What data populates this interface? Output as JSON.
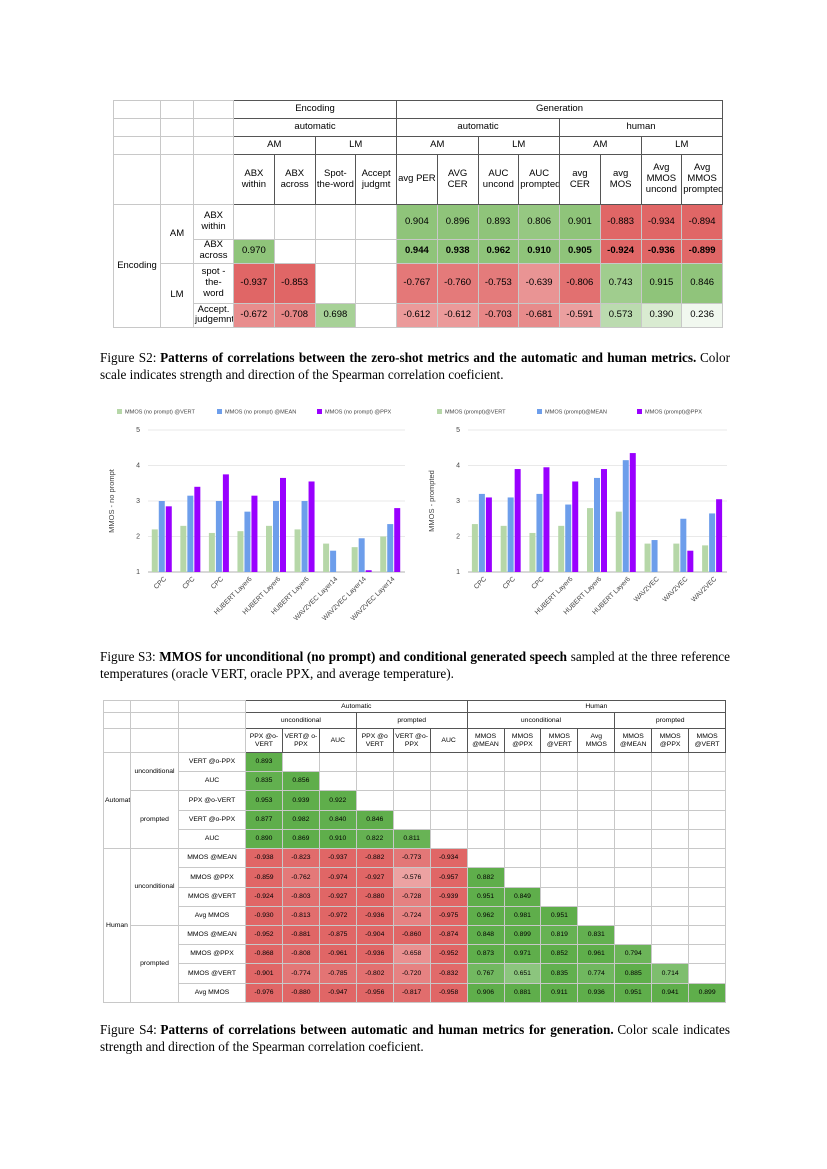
{
  "table_s2": {
    "color_scale": {
      "positive": "#8fc47a",
      "negative": "#e06666"
    },
    "columns": [
      {
        "label": "Encoding",
        "children": [
          {
            "label": "automatic",
            "children": [
              {
                "label": "AM",
                "children": [
                  "ABX within",
                  "ABX across"
                ]
              },
              {
                "label": "LM",
                "children": [
                  "Spot-the-word",
                  "Accept judgmt"
                ]
              }
            ]
          }
        ]
      },
      {
        "label": "Generation",
        "children": [
          {
            "label": "automatic",
            "children": [
              {
                "label": "AM",
                "children": [
                  "avg PER",
                  "AVG CER"
                ]
              },
              {
                "label": "LM",
                "children": [
                  "AUC uncond",
                  "AUC prompted"
                ]
              }
            ]
          },
          {
            "label": "human",
            "children": [
              {
                "label": "AM",
                "children": [
                  "avg CER",
                  "avg MOS"
                ]
              },
              {
                "label": "LM",
                "children": [
                  "Avg MMOS uncond",
                  "Avg MMOS prompted"
                ]
              }
            ]
          }
        ]
      }
    ],
    "rows": [
      {
        "label": "Encoding",
        "children": [
          {
            "label": "AM",
            "children": [
              {
                "label": "ABX within",
                "cells": [
                  null,
                  null,
                  null,
                  null,
                  "0.904",
                  "0.896",
                  "0.893",
                  "0.806",
                  "0.901",
                  "-0.883",
                  "-0.934",
                  "-0.894"
                ]
              },
              {
                "label": "ABX across",
                "cells": [
                  "0.970",
                  null,
                  null,
                  null,
                  {
                    "text": "0.944",
                    "bold": true
                  },
                  {
                    "text": "0.938",
                    "bold": true
                  },
                  {
                    "text": "0.962",
                    "bold": true
                  },
                  {
                    "text": "0.910",
                    "bold": true
                  },
                  {
                    "text": "0.905",
                    "bold": true
                  },
                  {
                    "text": "-0.924",
                    "bold": true
                  },
                  {
                    "text": "-0.936",
                    "bold": true
                  },
                  {
                    "text": "-0.899",
                    "bold": true
                  }
                ]
              }
            ]
          },
          {
            "label": "LM",
            "children": [
              {
                "label": "spot - the- word",
                "cells": [
                  "-0.937",
                  "-0.853",
                  null,
                  null,
                  "-0.767",
                  "-0.760",
                  "-0.753",
                  "-0.639",
                  "-0.806",
                  "0.743",
                  "0.915",
                  "0.846"
                ]
              },
              {
                "label": "Accept. judgemnt",
                "cells": [
                  "-0.672",
                  "-0.708",
                  "0.698",
                  null,
                  "-0.612",
                  "-0.612",
                  "-0.703",
                  "-0.681",
                  "-0.591",
                  "0.573",
                  "0.390",
                  "0.236"
                ]
              }
            ]
          }
        ]
      }
    ]
  },
  "caption_s2": {
    "label": "Figure S2:",
    "bold": "Patterns of correlations between the zero-shot metrics and the automatic and human metrics.",
    "text": "Color scale indicates strength and direction of the Spearman correlation coeficient."
  },
  "chart_data": [
    {
      "type": "bar",
      "y_label": "MMOS - no prompt",
      "legend": "top",
      "categories": [
        "CPC",
        "CPC",
        "CPC",
        "HUBERT Layer6",
        "HUBERT Layer6",
        "HUBERT Layer6",
        "WAV2VEC Layer14",
        "WAV2VEC Layer14",
        "WAV2VEC Layer14"
      ],
      "ylim": [
        1,
        5
      ],
      "yticks": [
        1,
        2,
        3,
        4,
        5
      ],
      "grid": true,
      "series": [
        {
          "name": "MMOS (no prompt) @VERT",
          "color": "#b6d7a8",
          "values": [
            2.2,
            2.3,
            2.1,
            2.15,
            2.3,
            2.2,
            1.8,
            1.7,
            2.0
          ]
        },
        {
          "name": "MMOS (no prompt) @MEAN",
          "color": "#6d9eeb",
          "values": [
            3.0,
            3.15,
            3.0,
            2.7,
            3.0,
            3.0,
            1.6,
            1.95,
            2.35
          ]
        },
        {
          "name": "MMOS (no prompt) @PPX",
          "color": "#9900ff",
          "values": [
            2.85,
            3.4,
            3.75,
            3.15,
            3.65,
            3.55,
            null,
            1.05,
            2.8
          ]
        }
      ]
    },
    {
      "type": "bar",
      "y_label": "MMOS - prompted",
      "legend": "top",
      "categories": [
        "CPC",
        "CPC",
        "CPC",
        "HUBERT Layer6",
        "HUBERT Layer6",
        "HUBERT Layer6",
        "WAV2VEC",
        "WAV2VEC",
        "WAV2VEC"
      ],
      "ylim": [
        1,
        5
      ],
      "yticks": [
        1,
        2,
        3,
        4,
        5
      ],
      "grid": true,
      "series": [
        {
          "name": "MMOS (prompt)@VERT",
          "color": "#b6d7a8",
          "values": [
            2.35,
            2.3,
            2.1,
            2.3,
            2.8,
            2.7,
            1.8,
            1.8,
            1.75
          ]
        },
        {
          "name": "MMOS (prompt)@MEAN",
          "color": "#6d9eeb",
          "values": [
            3.2,
            3.1,
            3.2,
            2.9,
            3.65,
            4.15,
            1.9,
            2.5,
            2.65
          ]
        },
        {
          "name": "MMOS (prompt)@PPX",
          "color": "#9900ff",
          "values": [
            3.1,
            3.9,
            3.95,
            3.55,
            3.9,
            4.35,
            null,
            1.6,
            3.05
          ]
        }
      ]
    }
  ],
  "caption_s3": {
    "label": "Figure S3:",
    "bold": "MMOS for unconditional (no prompt) and conditional generated speech",
    "text": "sampled at the three reference temperatures (oracle VERT, oracle PPX, and average temperature)."
  },
  "table_s4": {
    "color_scale": {
      "positive": "#5fae4b",
      "negative": "#e06666"
    },
    "columns": [
      {
        "label": "Automatic",
        "children": [
          {
            "label": "unconditional",
            "children": [
              "PPX @o-VERT",
              "VERT@ o-PPX",
              "AUC"
            ]
          },
          {
            "label": "prompted",
            "children": [
              "PPX @o VERT",
              "VERT @o-PPX",
              "AUC"
            ]
          }
        ]
      },
      {
        "label": "Human",
        "children": [
          {
            "label": "unconditional",
            "children": [
              "MMOS @MEAN",
              "MMOS @PPX",
              "MMOS @VERT",
              "Avg MMOS"
            ]
          },
          {
            "label": "prompted",
            "children": [
              "MMOS @MEAN",
              "MMOS @PPX",
              "MMOS @VERT"
            ]
          }
        ]
      }
    ],
    "rows": [
      {
        "label": "Automatic",
        "children": [
          {
            "label": "unconditional",
            "children": [
              {
                "label": "VERT @o-PPX",
                "cells": [
                  "0.893"
                ]
              },
              {
                "label": "AUC",
                "cells": [
                  "0.835",
                  "0.856"
                ]
              }
            ]
          },
          {
            "label": "prompted",
            "children": [
              {
                "label": "PPX @o-VERT",
                "cells": [
                  "0.953",
                  "0.939",
                  "0.922"
                ]
              },
              {
                "label": "VERT @o-PPX",
                "cells": [
                  "0.877",
                  "0.982",
                  "0.840",
                  "0.846"
                ]
              },
              {
                "label": "AUC",
                "cells": [
                  "0.890",
                  "0.869",
                  "0.910",
                  "0.822",
                  "0.811"
                ]
              }
            ]
          }
        ]
      },
      {
        "label": "Human",
        "children": [
          {
            "label": "unconditional",
            "children": [
              {
                "label": "MMOS @MEAN",
                "cells": [
                  "-0.938",
                  "-0.823",
                  "-0.937",
                  "-0.882",
                  "-0.773",
                  "-0.934"
                ]
              },
              {
                "label": "MMOS @PPX",
                "cells": [
                  "-0.859",
                  "-0.762",
                  "-0.974",
                  "-0.927",
                  "-0.576",
                  "-0.957",
                  "0.882"
                ]
              },
              {
                "label": "MMOS @VERT",
                "cells": [
                  "-0.924",
                  "-0.803",
                  "-0.927",
                  "-0.880",
                  "-0.728",
                  "-0.939",
                  "0.951",
                  "0.849"
                ]
              },
              {
                "label": "Avg MMOS",
                "cells": [
                  "-0.930",
                  "-0.813",
                  "-0.972",
                  "-0.936",
                  "-0.724",
                  "-0.975",
                  "0.962",
                  "0.981",
                  "0.951"
                ]
              }
            ]
          },
          {
            "label": "prompted",
            "children": [
              {
                "label": "MMOS @MEAN",
                "cells": [
                  "-0.952",
                  "-0.881",
                  "-0.875",
                  "-0.904",
                  "-0.860",
                  "-0.874",
                  "0.848",
                  "0.899",
                  "0.819",
                  "0.831"
                ]
              },
              {
                "label": "MMOS @PPX",
                "cells": [
                  "-0.868",
                  "-0.808",
                  "-0.961",
                  "-0.936",
                  "-0.658",
                  "-0.952",
                  "0.873",
                  "0.971",
                  "0.852",
                  "0.961",
                  "0.794"
                ]
              },
              {
                "label": "MMOS @VERT",
                "cells": [
                  "-0.901",
                  "-0.774",
                  "-0.785",
                  "-0.802",
                  "-0.720",
                  "-0.832",
                  "0.767",
                  "0.651",
                  "0.835",
                  "0.774",
                  "0.885",
                  "0.714"
                ]
              },
              {
                "label": "Avg MMOS",
                "cells": [
                  "-0.976",
                  "-0.880",
                  "-0.947",
                  "-0.956",
                  "-0.817",
                  "-0.958",
                  "0.906",
                  "0.881",
                  "0.911",
                  "0.936",
                  "0.951",
                  "0.941",
                  "0.899"
                ]
              }
            ]
          }
        ]
      }
    ]
  },
  "caption_s4": {
    "label": "Figure S4:",
    "bold": "Patterns of correlations between automatic and human metrics for generation.",
    "text": "Color scale indicates strength and direction of the Spearman correlation coeficient."
  }
}
